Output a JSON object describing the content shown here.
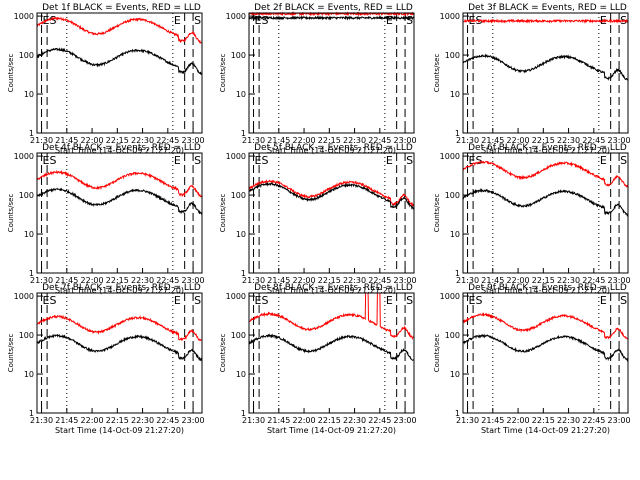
{
  "figure": {
    "xlabel": "Start Time (14-Oct-09 21:27:20)",
    "ylabel": "Counts/sec"
  },
  "chart_data": [
    {
      "type": "line",
      "title": "Det 1f BLACK = Events, RED = LLD",
      "events_level": "80",
      "lld_level": "500",
      "events_shape": "wave",
      "lld_shape": "wave"
    },
    {
      "type": "line",
      "title": "Det 2f BLACK = Events, RED = LLD",
      "events_level": "900",
      "lld_level": "1150",
      "events_shape": "flat",
      "lld_shape": "flat"
    },
    {
      "type": "line",
      "title": "Det 3f BLACK = Events, RED = LLD",
      "events_level": "55",
      "lld_level": "750",
      "events_shape": "wave",
      "lld_shape": "flat"
    },
    {
      "type": "line",
      "title": "Det 4f BLACK = Events, RED = LLD",
      "events_level": "80",
      "lld_level": "220",
      "events_shape": "wave",
      "lld_shape": "wave"
    },
    {
      "type": "line",
      "title": "Det 5f BLACK = Events, RED = LLD",
      "events_level": "110",
      "lld_level": "130",
      "events_shape": "wave",
      "lld_shape": "wave"
    },
    {
      "type": "line",
      "title": "Det 6f BLACK = Events, RED = LLD",
      "events_level": "75",
      "lld_level": "400",
      "events_shape": "wave",
      "lld_shape": "wave"
    },
    {
      "type": "line",
      "title": "Det 7f BLACK = Events, RED = LLD",
      "events_level": "55",
      "lld_level": "170",
      "events_shape": "wave",
      "lld_shape": "wave"
    },
    {
      "type": "line",
      "title": "Det 8f BLACK = Events, RED = LLD",
      "events_level": "55",
      "lld_level": "200",
      "events_shape": "wave",
      "lld_shape": "wave_spikes"
    },
    {
      "type": "line",
      "title": "Det 9f BLACK = Events, RED = LLD",
      "events_level": "55",
      "lld_level": "190",
      "events_shape": "wave",
      "lld_shape": "wave"
    }
  ],
  "common": {
    "x_ticks": [
      "21:30",
      "21:45",
      "22:00",
      "22:15",
      "22:30",
      "22:45",
      "23:00"
    ],
    "y_ticks": [
      "1",
      "10",
      "100",
      "1000"
    ],
    "x_range_minutes": [
      0,
      98
    ],
    "y_range": [
      1,
      1200
    ],
    "y_scale": "log",
    "markers": [
      {
        "label": "ES",
        "style": "dashed",
        "minute": 2.7
      },
      {
        "label": "",
        "style": "dashed",
        "minute": 6.0
      },
      {
        "label": "",
        "style": "dotted",
        "minute": 17.7
      },
      {
        "label": "E",
        "style": "dotted",
        "minute": 80.7
      },
      {
        "label": "",
        "style": "dashed",
        "minute": 87.7
      },
      {
        "label": "S",
        "style": "dashed",
        "minute": 92.7
      }
    ],
    "events_color": "#000000",
    "lld_color": "#ff0000"
  }
}
